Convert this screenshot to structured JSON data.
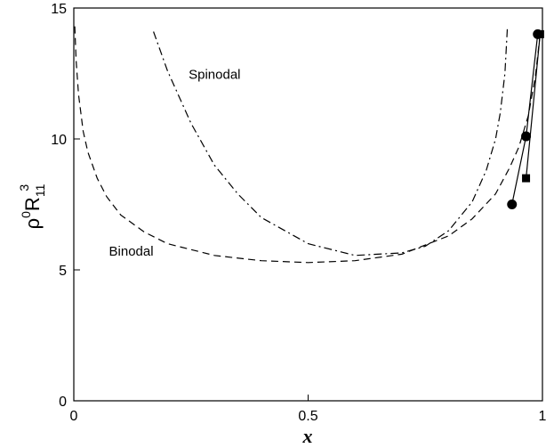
{
  "chart_data": {
    "type": "line",
    "xlabel": "x",
    "ylabel": {
      "rho": "ρ",
      "sup0": "0",
      "R": "R",
      "sub": "11",
      "sup3": "3"
    },
    "xlim": [
      0,
      1
    ],
    "ylim": [
      0,
      15
    ],
    "x_ticks": [
      0,
      0.5,
      1
    ],
    "x_tick_labels": [
      "0",
      "0.5",
      "1"
    ],
    "y_ticks": [
      0,
      5,
      10,
      15
    ],
    "y_tick_labels": [
      "0",
      "5",
      "10",
      "15"
    ],
    "grid": false,
    "annotations": [
      {
        "text": "Spinodal",
        "x": 0.245,
        "y": 12.3
      },
      {
        "text": "Binodal",
        "x": 0.075,
        "y": 5.55
      }
    ],
    "series": [
      {
        "style": "dashed",
        "x": [
          0.002,
          0.005,
          0.01,
          0.02,
          0.03,
          0.05,
          0.07,
          0.1,
          0.15,
          0.2,
          0.3,
          0.4,
          0.5,
          0.6,
          0.7,
          0.8,
          0.85,
          0.9,
          0.93,
          0.95,
          0.97,
          0.985,
          0.995
        ],
        "y": [
          14.3,
          13.0,
          11.7,
          10.3,
          9.5,
          8.5,
          7.8,
          7.1,
          6.45,
          6.0,
          5.55,
          5.35,
          5.28,
          5.35,
          5.6,
          6.3,
          6.95,
          7.9,
          8.9,
          9.7,
          10.9,
          12.4,
          14.0
        ]
      },
      {
        "style": "dashdot",
        "x": [
          0.17,
          0.2,
          0.25,
          0.3,
          0.35,
          0.4,
          0.5,
          0.6,
          0.7,
          0.75,
          0.8,
          0.85,
          0.88,
          0.9,
          0.91,
          0.92,
          0.925
        ],
        "y": [
          14.1,
          12.6,
          10.6,
          9.0,
          7.9,
          7.0,
          6.0,
          5.55,
          5.65,
          5.9,
          6.5,
          7.6,
          8.8,
          10.0,
          11.0,
          12.5,
          14.2
        ]
      },
      {
        "style": "solid",
        "marker": "circle",
        "x": [
          0.935,
          0.965,
          0.99
        ],
        "y": [
          7.5,
          10.1,
          14.0
        ]
      },
      {
        "style": "solid",
        "marker": "square",
        "x": [
          0.965,
          0.995
        ],
        "y": [
          8.5,
          14.0
        ]
      }
    ]
  }
}
